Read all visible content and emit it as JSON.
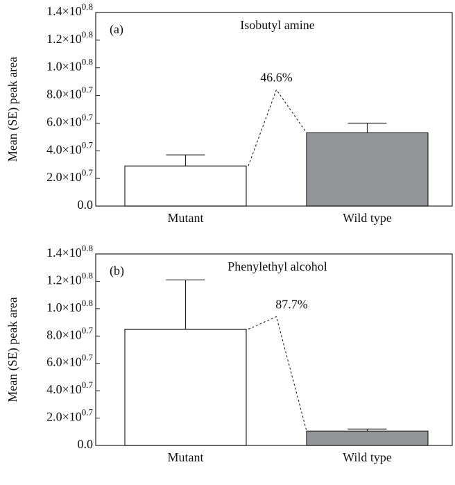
{
  "chart_data": [
    {
      "type": "bar",
      "panel": "(a)",
      "title": "Isobutyl amine",
      "ylabel": "Mean (SE) peak area",
      "categories": [
        "Mutant",
        "Wild type"
      ],
      "values": [
        29000000,
        53000000
      ],
      "errors": [
        8000000,
        7000000
      ],
      "colors": [
        "#ffffff",
        "#939598"
      ],
      "annotation": "46.6%",
      "ylim": [
        0,
        140000000
      ],
      "yticks": [
        {
          "value": 0,
          "label": "0.0"
        },
        {
          "value": 20000000,
          "label": "2.0×10^0.7"
        },
        {
          "value": 40000000,
          "label": "4.0×10^0.7"
        },
        {
          "value": 60000000,
          "label": "6.0×10^0.7"
        },
        {
          "value": 80000000,
          "label": "8.0×10^0.7"
        },
        {
          "value": 100000000,
          "label": "1.0×10^0.8"
        },
        {
          "value": 120000000,
          "label": "1.2×10^0.8"
        },
        {
          "value": 140000000,
          "label": "1.4×10^0.8"
        }
      ]
    },
    {
      "type": "bar",
      "panel": "(b)",
      "title": "Phenylethyl alcohol",
      "ylabel": "Mean (SE) peak area",
      "categories": [
        "Mutant",
        "Wild type"
      ],
      "values": [
        85000000,
        10500000
      ],
      "errors": [
        36000000,
        1500000
      ],
      "colors": [
        "#ffffff",
        "#939598"
      ],
      "annotation": "87.7%",
      "ylim": [
        0,
        140000000
      ],
      "yticks": [
        {
          "value": 0,
          "label": "0.0"
        },
        {
          "value": 20000000,
          "label": "2.0×10^0.7"
        },
        {
          "value": 40000000,
          "label": "4.0×10^0.7"
        },
        {
          "value": 60000000,
          "label": "6.0×10^0.7"
        },
        {
          "value": 80000000,
          "label": "8.0×10^0.7"
        },
        {
          "value": 100000000,
          "label": "1.0×10^0.8"
        },
        {
          "value": 120000000,
          "label": "1.2×10^0.8"
        },
        {
          "value": 140000000,
          "label": "1.4×10^0.8"
        }
      ]
    }
  ]
}
